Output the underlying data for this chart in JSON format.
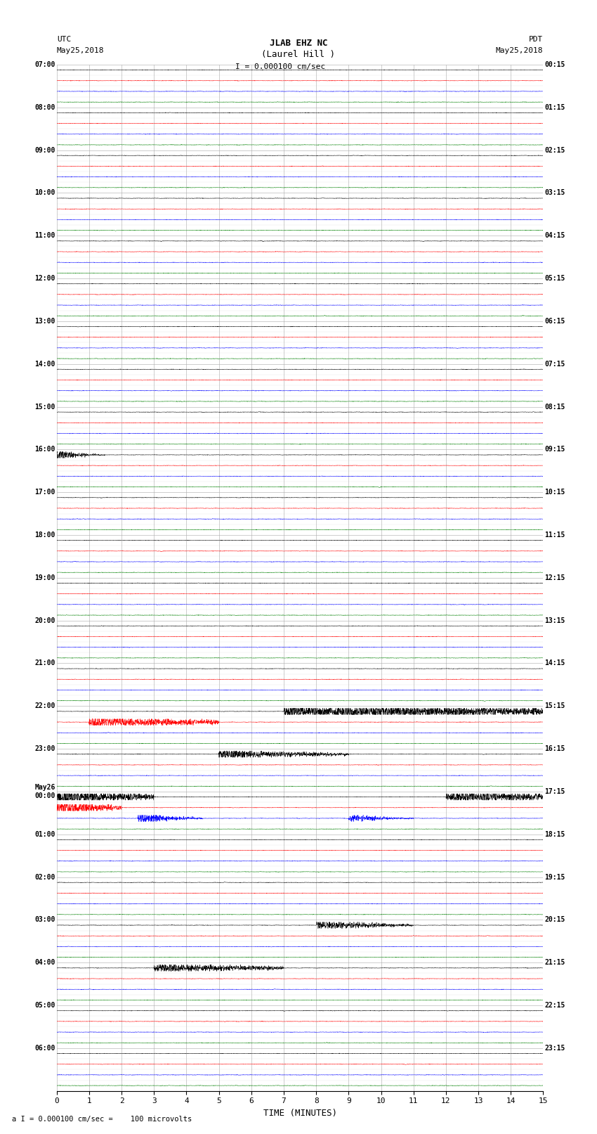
{
  "title_line1": "JLAB EHZ NC",
  "title_line2": "(Laurel Hill )",
  "scale_label": "I = 0.000100 cm/sec",
  "bottom_label": "a I = 0.000100 cm/sec =    100 microvolts",
  "utc_label": "UTC\nMay25,2018",
  "pdt_label": "PDT\nMay25,2018",
  "xlabel": "TIME (MINUTES)",
  "fig_width": 8.5,
  "fig_height": 16.13,
  "dpi": 100,
  "left_times_utc": [
    "07:00",
    "",
    "",
    "",
    "08:00",
    "",
    "",
    "",
    "09:00",
    "",
    "",
    "",
    "10:00",
    "",
    "",
    "",
    "11:00",
    "",
    "",
    "",
    "12:00",
    "",
    "",
    "",
    "13:00",
    "",
    "",
    "",
    "14:00",
    "",
    "",
    "",
    "15:00",
    "",
    "",
    "",
    "16:00",
    "",
    "",
    "",
    "17:00",
    "",
    "",
    "",
    "18:00",
    "",
    "",
    "",
    "19:00",
    "",
    "",
    "",
    "20:00",
    "",
    "",
    "",
    "21:00",
    "",
    "",
    "",
    "22:00",
    "",
    "",
    "",
    "23:00",
    "",
    "",
    "",
    "May26\n00:00",
    "",
    "",
    "",
    "01:00",
    "",
    "",
    "",
    "02:00",
    "",
    "",
    "",
    "03:00",
    "",
    "",
    "",
    "04:00",
    "",
    "",
    "",
    "05:00",
    "",
    "",
    "",
    "06:00",
    "",
    "",
    ""
  ],
  "right_times_pdt": [
    "00:15",
    "",
    "",
    "",
    "01:15",
    "",
    "",
    "",
    "02:15",
    "",
    "",
    "",
    "03:15",
    "",
    "",
    "",
    "04:15",
    "",
    "",
    "",
    "05:15",
    "",
    "",
    "",
    "06:15",
    "",
    "",
    "",
    "07:15",
    "",
    "",
    "",
    "08:15",
    "",
    "",
    "",
    "09:15",
    "",
    "",
    "",
    "10:15",
    "",
    "",
    "",
    "11:15",
    "",
    "",
    "",
    "12:15",
    "",
    "",
    "",
    "13:15",
    "",
    "",
    "",
    "14:15",
    "",
    "",
    "",
    "15:15",
    "",
    "",
    "",
    "16:15",
    "",
    "",
    "",
    "17:15",
    "",
    "",
    "",
    "18:15",
    "",
    "",
    "",
    "19:15",
    "",
    "",
    "",
    "20:15",
    "",
    "",
    "",
    "21:15",
    "",
    "",
    "",
    "22:15",
    "",
    "",
    "",
    "23:15",
    "",
    "",
    ""
  ],
  "colors": [
    "black",
    "red",
    "blue",
    "green"
  ],
  "n_rows": 96,
  "n_cols": 3000,
  "time_min": 0,
  "time_max": 15,
  "xticks": [
    0,
    1,
    2,
    3,
    4,
    5,
    6,
    7,
    8,
    9,
    10,
    11,
    12,
    13,
    14,
    15
  ],
  "background_color": "white",
  "trace_amplitude": 0.12,
  "noise_scale": 0.018
}
